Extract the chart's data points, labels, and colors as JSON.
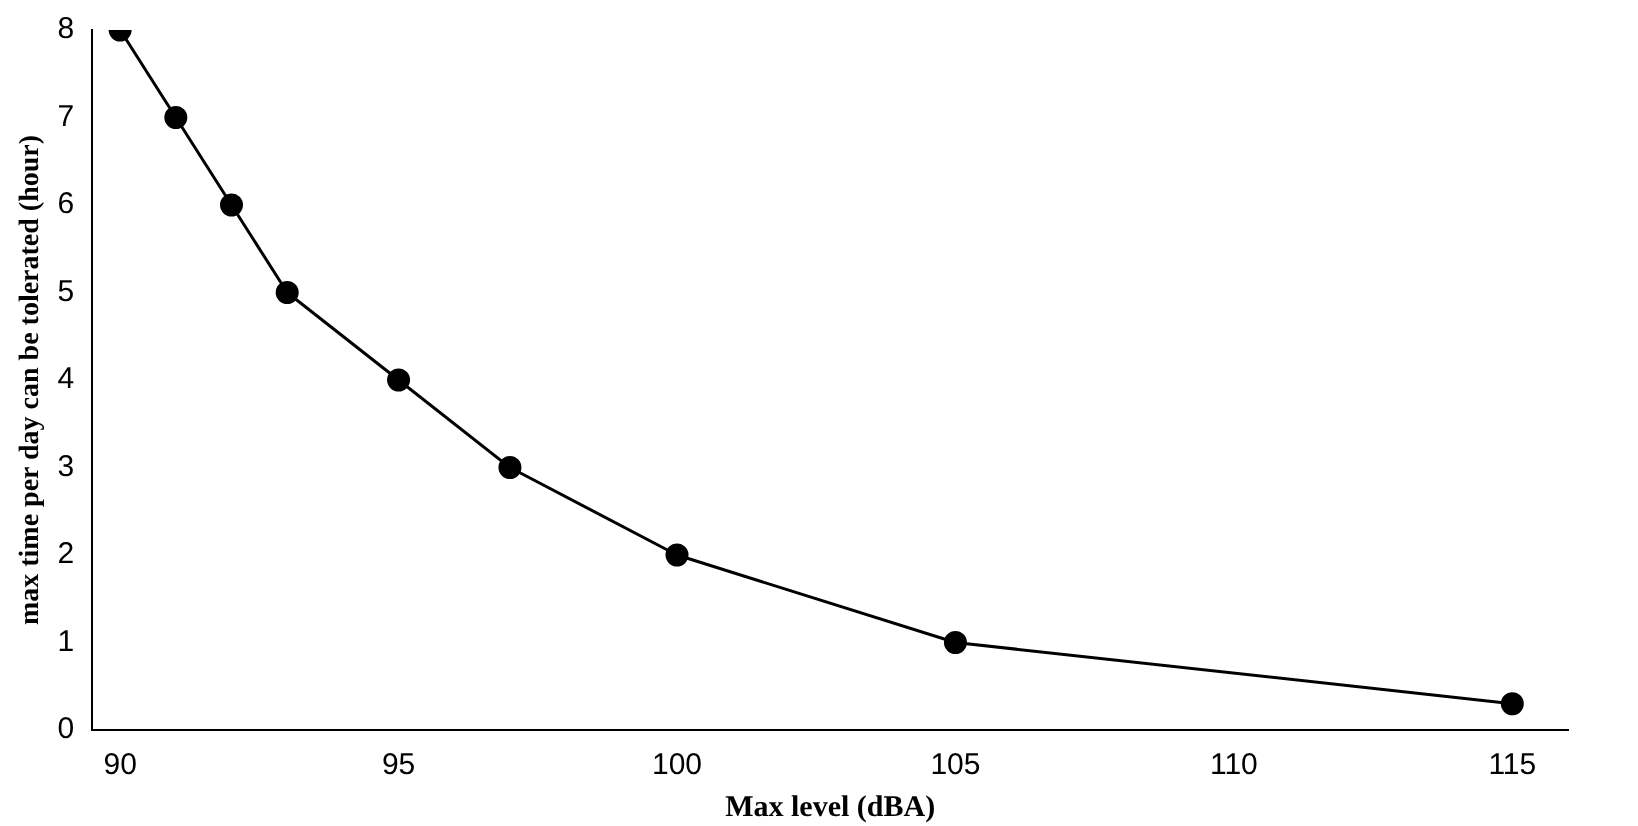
{
  "chart_data": {
    "type": "line",
    "xlabel": "Max level (dBA)",
    "ylabel": "max time per day can be tolerated (hour)",
    "series": [
      {
        "color": "#000000",
        "x": [
          90,
          91,
          92,
          93,
          95,
          97,
          100,
          105,
          115
        ],
        "values": [
          8,
          7,
          6,
          5,
          4,
          3,
          2,
          1,
          0.3
        ]
      }
    ],
    "xlim": [
      89.5,
      116
    ],
    "xticks": [
      90,
      95,
      100,
      105,
      110,
      115
    ],
    "ylim": [
      0,
      8
    ],
    "yticks": [
      0,
      1,
      2,
      3,
      4,
      5,
      6,
      7,
      8
    ],
    "grid": false,
    "legend": false,
    "marker": "circle",
    "line_style": "solid"
  }
}
